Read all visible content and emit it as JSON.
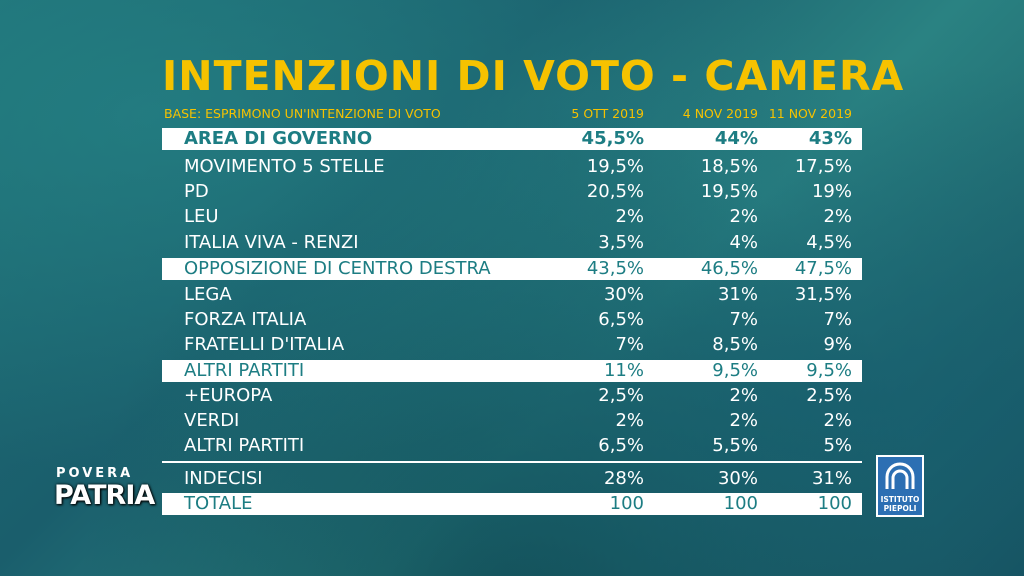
{
  "title": "INTENZIONI DI VOTO - CAMERA",
  "subtitle": "BASE: ESPRIMONO UN'INTENZIONE DI VOTO",
  "columns": [
    "5 OTT 2019",
    "4 NOV 2019",
    "11 NOV 2019"
  ],
  "rows": [
    {
      "label": "AREA DI GOVERNO",
      "values": [
        "45,5%",
        "44%",
        "43%"
      ]
    },
    {
      "label": "MOVIMENTO 5 STELLE",
      "values": [
        "19,5%",
        "18,5%",
        "17,5%"
      ]
    },
    {
      "label": "PD",
      "values": [
        "20,5%",
        "19,5%",
        "19%"
      ]
    },
    {
      "label": "LEU",
      "values": [
        "2%",
        "2%",
        "2%"
      ]
    },
    {
      "label": "ITALIA VIVA - RENZI",
      "values": [
        "3,5%",
        "4%",
        "4,5%"
      ]
    },
    {
      "label": "OPPOSIZIONE DI CENTRO DESTRA",
      "values": [
        "43,5%",
        "46,5%",
        "47,5%"
      ]
    },
    {
      "label": "LEGA",
      "values": [
        "30%",
        "31%",
        "31,5%"
      ]
    },
    {
      "label": "FORZA ITALIA",
      "values": [
        "6,5%",
        "7%",
        "7%"
      ]
    },
    {
      "label": "FRATELLI D'ITALIA",
      "values": [
        "7%",
        "8,5%",
        "9%"
      ]
    },
    {
      "label": "ALTRI PARTITI",
      "values": [
        "11%",
        "9,5%",
        "9,5%"
      ]
    },
    {
      "label": "+EUROPA",
      "values": [
        "2,5%",
        "2%",
        "2,5%"
      ]
    },
    {
      "label": "VERDI",
      "values": [
        "2%",
        "2%",
        "2%"
      ]
    },
    {
      "label": "ALTRI PARTITI",
      "values": [
        "6,5%",
        "5,5%",
        "5%"
      ]
    },
    {
      "label": "INDECISI",
      "values": [
        "28%",
        "30%",
        "31%"
      ]
    },
    {
      "label": "TOTALE",
      "values": [
        "100",
        "100",
        "100"
      ]
    }
  ],
  "logos": {
    "show_top": "POVERA",
    "show_bottom": "PATRIA",
    "institute_line1": "ISTITUTO",
    "institute_line2": "PIEPOLI"
  },
  "colors": {
    "title": "#f6c200",
    "highlight_text": "#1d7d83",
    "institute_blue": "#2c6fb3"
  }
}
